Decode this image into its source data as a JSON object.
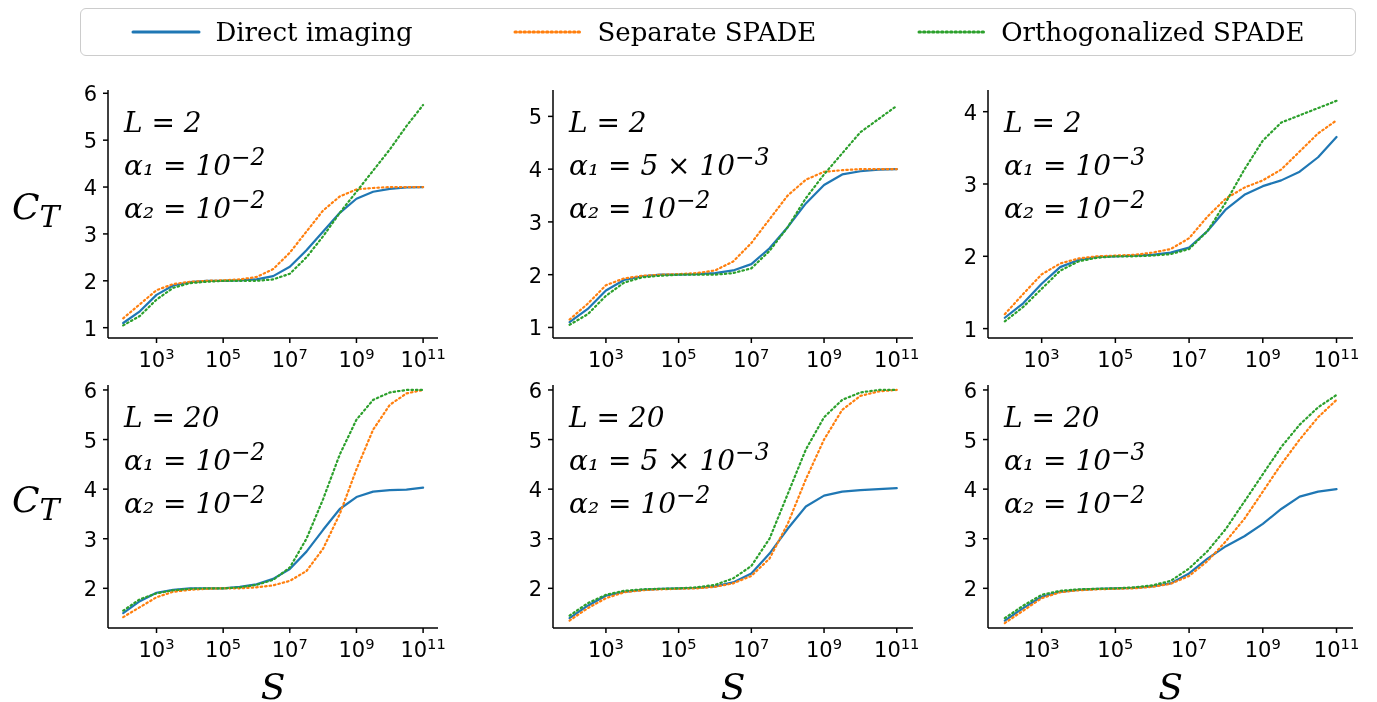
{
  "chart_data": [
    {
      "type": "line",
      "ylabel": "C$_{T}$",
      "legend": "top",
      "log": "x",
      "annotations": [
        "L = 2",
        "α₁ = 10$^{−2}$",
        "α₂ = 10$^{−2}$"
      ],
      "x": [
        100,
        316,
        1000,
        3162,
        10000,
        31623,
        100000,
        316228,
        1000000,
        3162278,
        10000000,
        31622777,
        100000000,
        316227766,
        1000000000,
        3162277660,
        10000000000,
        31622776602,
        100000000000
      ],
      "xlim": [
        35,
        280000000000
      ],
      "xticks": [
        {
          "value": 1000,
          "label": "10$^{3}$"
        },
        {
          "value": 100000,
          "label": "10$^{5}$"
        },
        {
          "value": 10000000,
          "label": "10$^{7}$"
        },
        {
          "value": 1000000000,
          "label": "10$^{9}$"
        },
        {
          "value": 100000000000,
          "label": "10$^{11}$"
        }
      ],
      "ylim": [
        0.78,
        6.07
      ],
      "yticks": [
        1,
        2,
        3,
        4,
        5,
        6
      ],
      "series": [
        {
          "name": "Direct imaging",
          "color": "#1f77b4",
          "line_style": "solid",
          "values": [
            1.1,
            1.35,
            1.7,
            1.9,
            1.97,
            2.0,
            2.0,
            2.01,
            2.03,
            2.1,
            2.3,
            2.65,
            3.05,
            3.45,
            3.75,
            3.9,
            3.96,
            3.99,
            4.0
          ]
        },
        {
          "name": "Separate SPADE",
          "color": "#ff7f0e",
          "line_style": "dotted",
          "values": [
            1.2,
            1.5,
            1.8,
            1.93,
            1.98,
            2.0,
            2.01,
            2.03,
            2.08,
            2.25,
            2.6,
            3.05,
            3.5,
            3.8,
            3.95,
            3.98,
            4.0,
            4.0,
            4.0
          ]
        },
        {
          "name": "Orthogonalized SPADE",
          "color": "#2ca02c",
          "line_style": "dotted",
          "values": [
            1.05,
            1.25,
            1.6,
            1.85,
            1.95,
            1.98,
            2.0,
            2.0,
            2.0,
            2.03,
            2.15,
            2.5,
            2.95,
            3.45,
            3.9,
            4.35,
            4.8,
            5.3,
            5.75
          ]
        }
      ]
    },
    {
      "type": "line",
      "log": "x",
      "annotations": [
        "L = 2",
        "α₁ = 5 × 10$^{−3}$",
        "α₂ = 10$^{−2}$"
      ],
      "x": [
        100,
        316,
        1000,
        3162,
        10000,
        31623,
        100000,
        316228,
        1000000,
        3162278,
        10000000,
        31622777,
        100000000,
        316227766,
        1000000000,
        3162277660,
        10000000000,
        31622776602,
        100000000000
      ],
      "xlim": [
        35,
        280000000000
      ],
      "xticks": [
        {
          "value": 1000,
          "label": "10$^{3}$"
        },
        {
          "value": 100000,
          "label": "10$^{5}$"
        },
        {
          "value": 10000000,
          "label": "10$^{7}$"
        },
        {
          "value": 1000000000,
          "label": "10$^{9}$"
        },
        {
          "value": 100000000000,
          "label": "10$^{11}$"
        }
      ],
      "ylim": [
        0.8,
        5.5
      ],
      "yticks": [
        1,
        2,
        3,
        4,
        5
      ],
      "series": [
        {
          "color": "#1f77b4",
          "line_style": "solid",
          "values": [
            1.1,
            1.35,
            1.7,
            1.9,
            1.97,
            2.0,
            2.0,
            2.01,
            2.03,
            2.08,
            2.2,
            2.5,
            2.9,
            3.35,
            3.7,
            3.9,
            3.96,
            3.99,
            4.0
          ]
        },
        {
          "color": "#ff7f0e",
          "line_style": "dotted",
          "values": [
            1.15,
            1.45,
            1.8,
            1.93,
            1.98,
            2.0,
            2.01,
            2.03,
            2.08,
            2.25,
            2.6,
            3.05,
            3.5,
            3.8,
            3.95,
            3.98,
            4.0,
            4.0,
            4.0
          ]
        },
        {
          "color": "#2ca02c",
          "line_style": "dotted",
          "values": [
            1.05,
            1.25,
            1.6,
            1.85,
            1.95,
            1.98,
            2.0,
            2.0,
            2.0,
            2.03,
            2.12,
            2.45,
            2.9,
            3.45,
            3.9,
            4.3,
            4.7,
            4.95,
            5.2
          ]
        }
      ]
    },
    {
      "type": "line",
      "log": "x",
      "annotations": [
        "L = 2",
        "α₁ = 10$^{−3}$",
        "α₂ = 10$^{−2}$"
      ],
      "x": [
        100,
        316,
        1000,
        3162,
        10000,
        31623,
        100000,
        316228,
        1000000,
        3162278,
        10000000,
        31622777,
        100000000,
        316227766,
        1000000000,
        3162277660,
        10000000000,
        31622776602,
        100000000000
      ],
      "xlim": [
        35,
        280000000000
      ],
      "xticks": [
        {
          "value": 1000,
          "label": "10$^{3}$"
        },
        {
          "value": 100000,
          "label": "10$^{5}$"
        },
        {
          "value": 10000000,
          "label": "10$^{7}$"
        },
        {
          "value": 1000000000,
          "label": "10$^{9}$"
        },
        {
          "value": 100000000000,
          "label": "10$^{11}$"
        }
      ],
      "ylim": [
        0.87,
        4.3
      ],
      "yticks": [
        1,
        2,
        3,
        4
      ],
      "series": [
        {
          "color": "#1f77b4",
          "line_style": "solid",
          "values": [
            1.15,
            1.35,
            1.62,
            1.85,
            1.95,
            1.99,
            2.0,
            2.01,
            2.02,
            2.05,
            2.12,
            2.35,
            2.65,
            2.85,
            2.97,
            3.05,
            3.17,
            3.37,
            3.65
          ]
        },
        {
          "color": "#ff7f0e",
          "line_style": "dotted",
          "values": [
            1.2,
            1.48,
            1.75,
            1.9,
            1.97,
            2.0,
            2.01,
            2.02,
            2.05,
            2.1,
            2.25,
            2.55,
            2.8,
            2.95,
            3.05,
            3.2,
            3.45,
            3.7,
            3.88
          ]
        },
        {
          "color": "#2ca02c",
          "line_style": "dotted",
          "values": [
            1.1,
            1.3,
            1.55,
            1.8,
            1.93,
            1.98,
            2.0,
            2.0,
            2.01,
            2.03,
            2.1,
            2.35,
            2.75,
            3.2,
            3.6,
            3.85,
            3.95,
            4.05,
            4.15
          ]
        }
      ]
    },
    {
      "type": "line",
      "ylabel": "C$_{T}$",
      "xlabel": "S",
      "log": "x",
      "annotations": [
        "L = 20",
        "α₁ = 10$^{−2}$",
        "α₂ = 10$^{−2}$"
      ],
      "x": [
        100,
        316,
        1000,
        3162,
        10000,
        31623,
        100000,
        316228,
        1000000,
        3162278,
        10000000,
        31622777,
        100000000,
        316227766,
        1000000000,
        3162277660,
        10000000000,
        31622776602,
        100000000000
      ],
      "xlim": [
        35,
        280000000000
      ],
      "xticks": [
        {
          "value": 1000,
          "label": "10$^{3}$"
        },
        {
          "value": 100000,
          "label": "10$^{5}$"
        },
        {
          "value": 10000000,
          "label": "10$^{7}$"
        },
        {
          "value": 1000000000,
          "label": "10$^{9}$"
        },
        {
          "value": 100000000000,
          "label": "10$^{11}$"
        }
      ],
      "ylim": [
        1.2,
        6.1
      ],
      "yticks": [
        2,
        3,
        4,
        5,
        6
      ],
      "series": [
        {
          "color": "#1f77b4",
          "line_style": "solid",
          "values": [
            1.5,
            1.74,
            1.91,
            1.97,
            2.0,
            2.0,
            2.0,
            2.03,
            2.08,
            2.19,
            2.39,
            2.74,
            3.18,
            3.6,
            3.84,
            3.95,
            3.98,
            3.99,
            4.03
          ]
        },
        {
          "color": "#ff7f0e",
          "line_style": "dotted",
          "values": [
            1.42,
            1.62,
            1.82,
            1.93,
            1.97,
            1.99,
            2.0,
            2.0,
            2.02,
            2.06,
            2.15,
            2.35,
            2.8,
            3.5,
            4.4,
            5.2,
            5.7,
            5.93,
            6.0
          ]
        },
        {
          "color": "#2ca02c",
          "line_style": "dotted",
          "values": [
            1.55,
            1.78,
            1.9,
            1.96,
            1.99,
            2.0,
            2.0,
            2.02,
            2.07,
            2.17,
            2.42,
            3.0,
            3.8,
            4.7,
            5.4,
            5.8,
            5.95,
            6.0,
            6.0
          ]
        }
      ]
    },
    {
      "type": "line",
      "xlabel": "S",
      "log": "x",
      "annotations": [
        "L = 20",
        "α₁ = 5 × 10$^{−3}$",
        "α₂ = 10$^{−2}$"
      ],
      "x": [
        100,
        316,
        1000,
        3162,
        10000,
        31623,
        100000,
        316228,
        1000000,
        3162278,
        10000000,
        31622777,
        100000000,
        316227766,
        1000000000,
        3162277660,
        10000000000,
        31622776602,
        100000000000
      ],
      "xlim": [
        35,
        280000000000
      ],
      "xticks": [
        {
          "value": 1000,
          "label": "10$^{3}$"
        },
        {
          "value": 100000,
          "label": "10$^{5}$"
        },
        {
          "value": 10000000,
          "label": "10$^{7}$"
        },
        {
          "value": 1000000000,
          "label": "10$^{9}$"
        },
        {
          "value": 100000000000,
          "label": "10$^{11}$"
        }
      ],
      "ylim": [
        1.2,
        6.1
      ],
      "yticks": [
        2,
        3,
        4,
        5,
        6
      ],
      "series": [
        {
          "color": "#1f77b4",
          "line_style": "solid",
          "values": [
            1.4,
            1.65,
            1.85,
            1.93,
            1.97,
            1.99,
            2.0,
            2.01,
            2.04,
            2.12,
            2.3,
            2.7,
            3.2,
            3.65,
            3.87,
            3.95,
            3.98,
            4.0,
            4.02
          ]
        },
        {
          "color": "#ff7f0e",
          "line_style": "dotted",
          "values": [
            1.35,
            1.6,
            1.8,
            1.92,
            1.96,
            1.98,
            1.99,
            2.0,
            2.03,
            2.1,
            2.25,
            2.6,
            3.3,
            4.2,
            5.0,
            5.6,
            5.88,
            5.97,
            6.0
          ]
        },
        {
          "color": "#2ca02c",
          "line_style": "dotted",
          "values": [
            1.45,
            1.7,
            1.87,
            1.95,
            1.98,
            1.99,
            2.0,
            2.02,
            2.07,
            2.2,
            2.45,
            3.0,
            3.9,
            4.8,
            5.45,
            5.8,
            5.95,
            6.0,
            6.0
          ]
        }
      ]
    },
    {
      "type": "line",
      "xlabel": "S",
      "log": "x",
      "annotations": [
        "L = 20",
        "α₁ = 10$^{−3}$",
        "α₂ = 10$^{−2}$"
      ],
      "x": [
        100,
        316,
        1000,
        3162,
        10000,
        31623,
        100000,
        316228,
        1000000,
        3162278,
        10000000,
        31622777,
        100000000,
        316227766,
        1000000000,
        3162277660,
        10000000000,
        31622776602,
        100000000000
      ],
      "xlim": [
        35,
        280000000000
      ],
      "xticks": [
        {
          "value": 1000,
          "label": "10$^{3}$"
        },
        {
          "value": 100000,
          "label": "10$^{5}$"
        },
        {
          "value": 10000000,
          "label": "10$^{7}$"
        },
        {
          "value": 1000000000,
          "label": "10$^{9}$"
        },
        {
          "value": 100000000000,
          "label": "10$^{11}$"
        }
      ],
      "ylim": [
        1.2,
        6.1
      ],
      "yticks": [
        2,
        3,
        4,
        5,
        6
      ],
      "series": [
        {
          "color": "#1f77b4",
          "line_style": "solid",
          "values": [
            1.35,
            1.6,
            1.83,
            1.93,
            1.97,
            1.99,
            2.0,
            2.01,
            2.04,
            2.1,
            2.3,
            2.6,
            2.85,
            3.05,
            3.3,
            3.6,
            3.85,
            3.95,
            4.0
          ]
        },
        {
          "color": "#ff7f0e",
          "line_style": "dotted",
          "values": [
            1.3,
            1.55,
            1.8,
            1.92,
            1.96,
            1.98,
            1.99,
            2.0,
            2.03,
            2.09,
            2.25,
            2.55,
            2.95,
            3.4,
            3.95,
            4.5,
            5.0,
            5.45,
            5.8
          ]
        },
        {
          "color": "#2ca02c",
          "line_style": "dotted",
          "values": [
            1.4,
            1.65,
            1.87,
            1.95,
            1.98,
            1.99,
            2.0,
            2.02,
            2.06,
            2.15,
            2.4,
            2.75,
            3.2,
            3.75,
            4.3,
            4.85,
            5.3,
            5.65,
            5.9
          ]
        }
      ]
    }
  ]
}
